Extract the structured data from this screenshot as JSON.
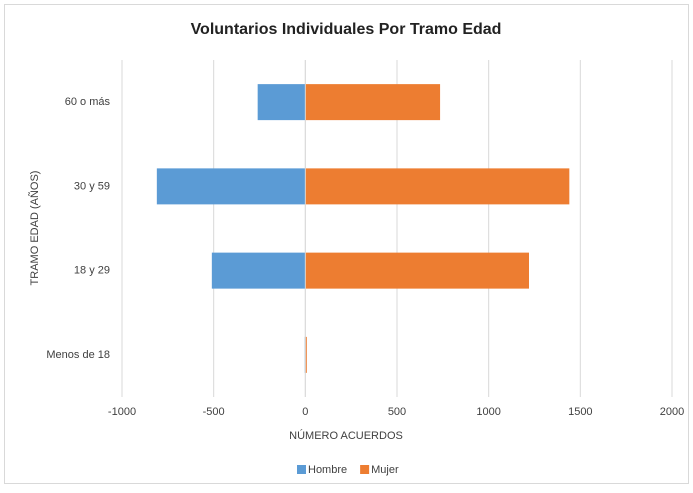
{
  "chart_data": {
    "type": "bar",
    "orientation": "horizontal",
    "stacked": true,
    "title": "Voluntarios Individuales Por Tramo Edad",
    "x_label": "NÚMERO ACUERDOS",
    "y_label": "TRAMO EDAD (AÑOS)",
    "categories": [
      "Menos de 18",
      "18 y 29",
      "30 y 59",
      "60 o más"
    ],
    "series": [
      {
        "name": "Hombre",
        "color": "#5b9bd5",
        "values": [
          -3,
          -510,
          -810,
          -260
        ]
      },
      {
        "name": "Mujer",
        "color": "#ed7d31",
        "values": [
          8,
          1220,
          1440,
          735
        ]
      }
    ],
    "xlim": [
      -1000,
      2000
    ],
    "xticks": [
      -1000,
      -500,
      0,
      500,
      1000,
      1500,
      2000
    ],
    "grid": true,
    "legend": "bottom"
  }
}
